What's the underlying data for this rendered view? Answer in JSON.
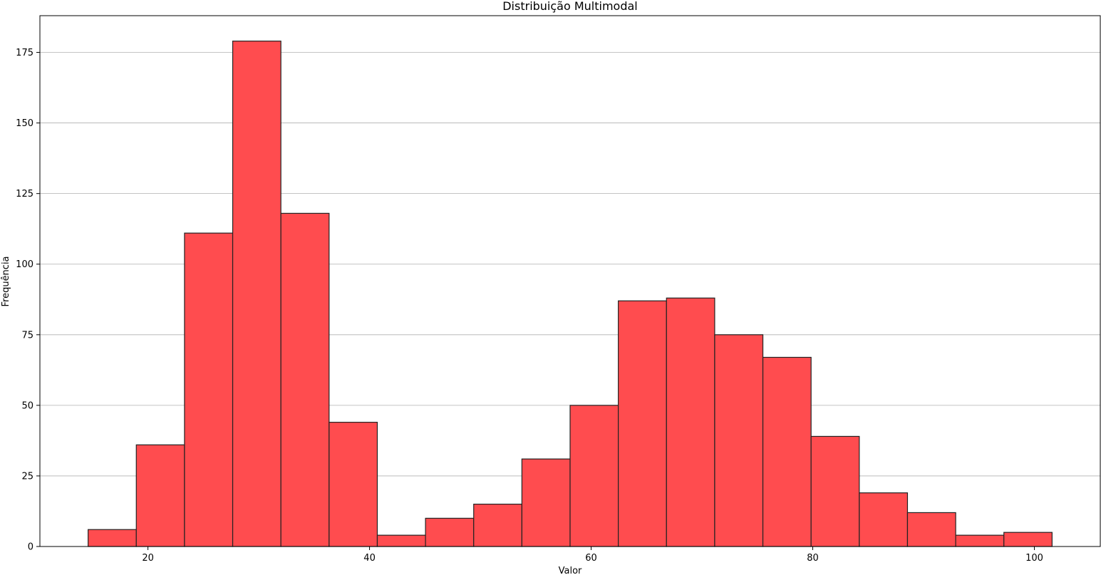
{
  "chart_data": {
    "type": "bar",
    "subtype": "histogram",
    "title": "Distribuição Multimodal",
    "xlabel": "Valor",
    "ylabel": "Frequência",
    "bin_edges": [
      14.6,
      18.95,
      23.3,
      27.65,
      32.0,
      36.35,
      40.7,
      45.05,
      49.4,
      53.75,
      58.1,
      62.45,
      66.8,
      71.15,
      75.5,
      79.85,
      84.2,
      88.55,
      92.9,
      97.25,
      101.6
    ],
    "values": [
      6,
      36,
      111,
      179,
      118,
      44,
      4,
      10,
      15,
      31,
      50,
      87,
      88,
      75,
      67,
      39,
      19,
      12,
      4,
      5
    ],
    "xlim": [
      10.25,
      105.95
    ],
    "ylim": [
      0,
      188
    ],
    "xticks": [
      20,
      40,
      60,
      80,
      100
    ],
    "yticks": [
      0,
      25,
      50,
      75,
      100,
      125,
      150,
      175
    ],
    "grid": "y",
    "bar_color": "#ff4c4f",
    "edge_color": "#222222",
    "grid_color": "#b0b0b0"
  }
}
